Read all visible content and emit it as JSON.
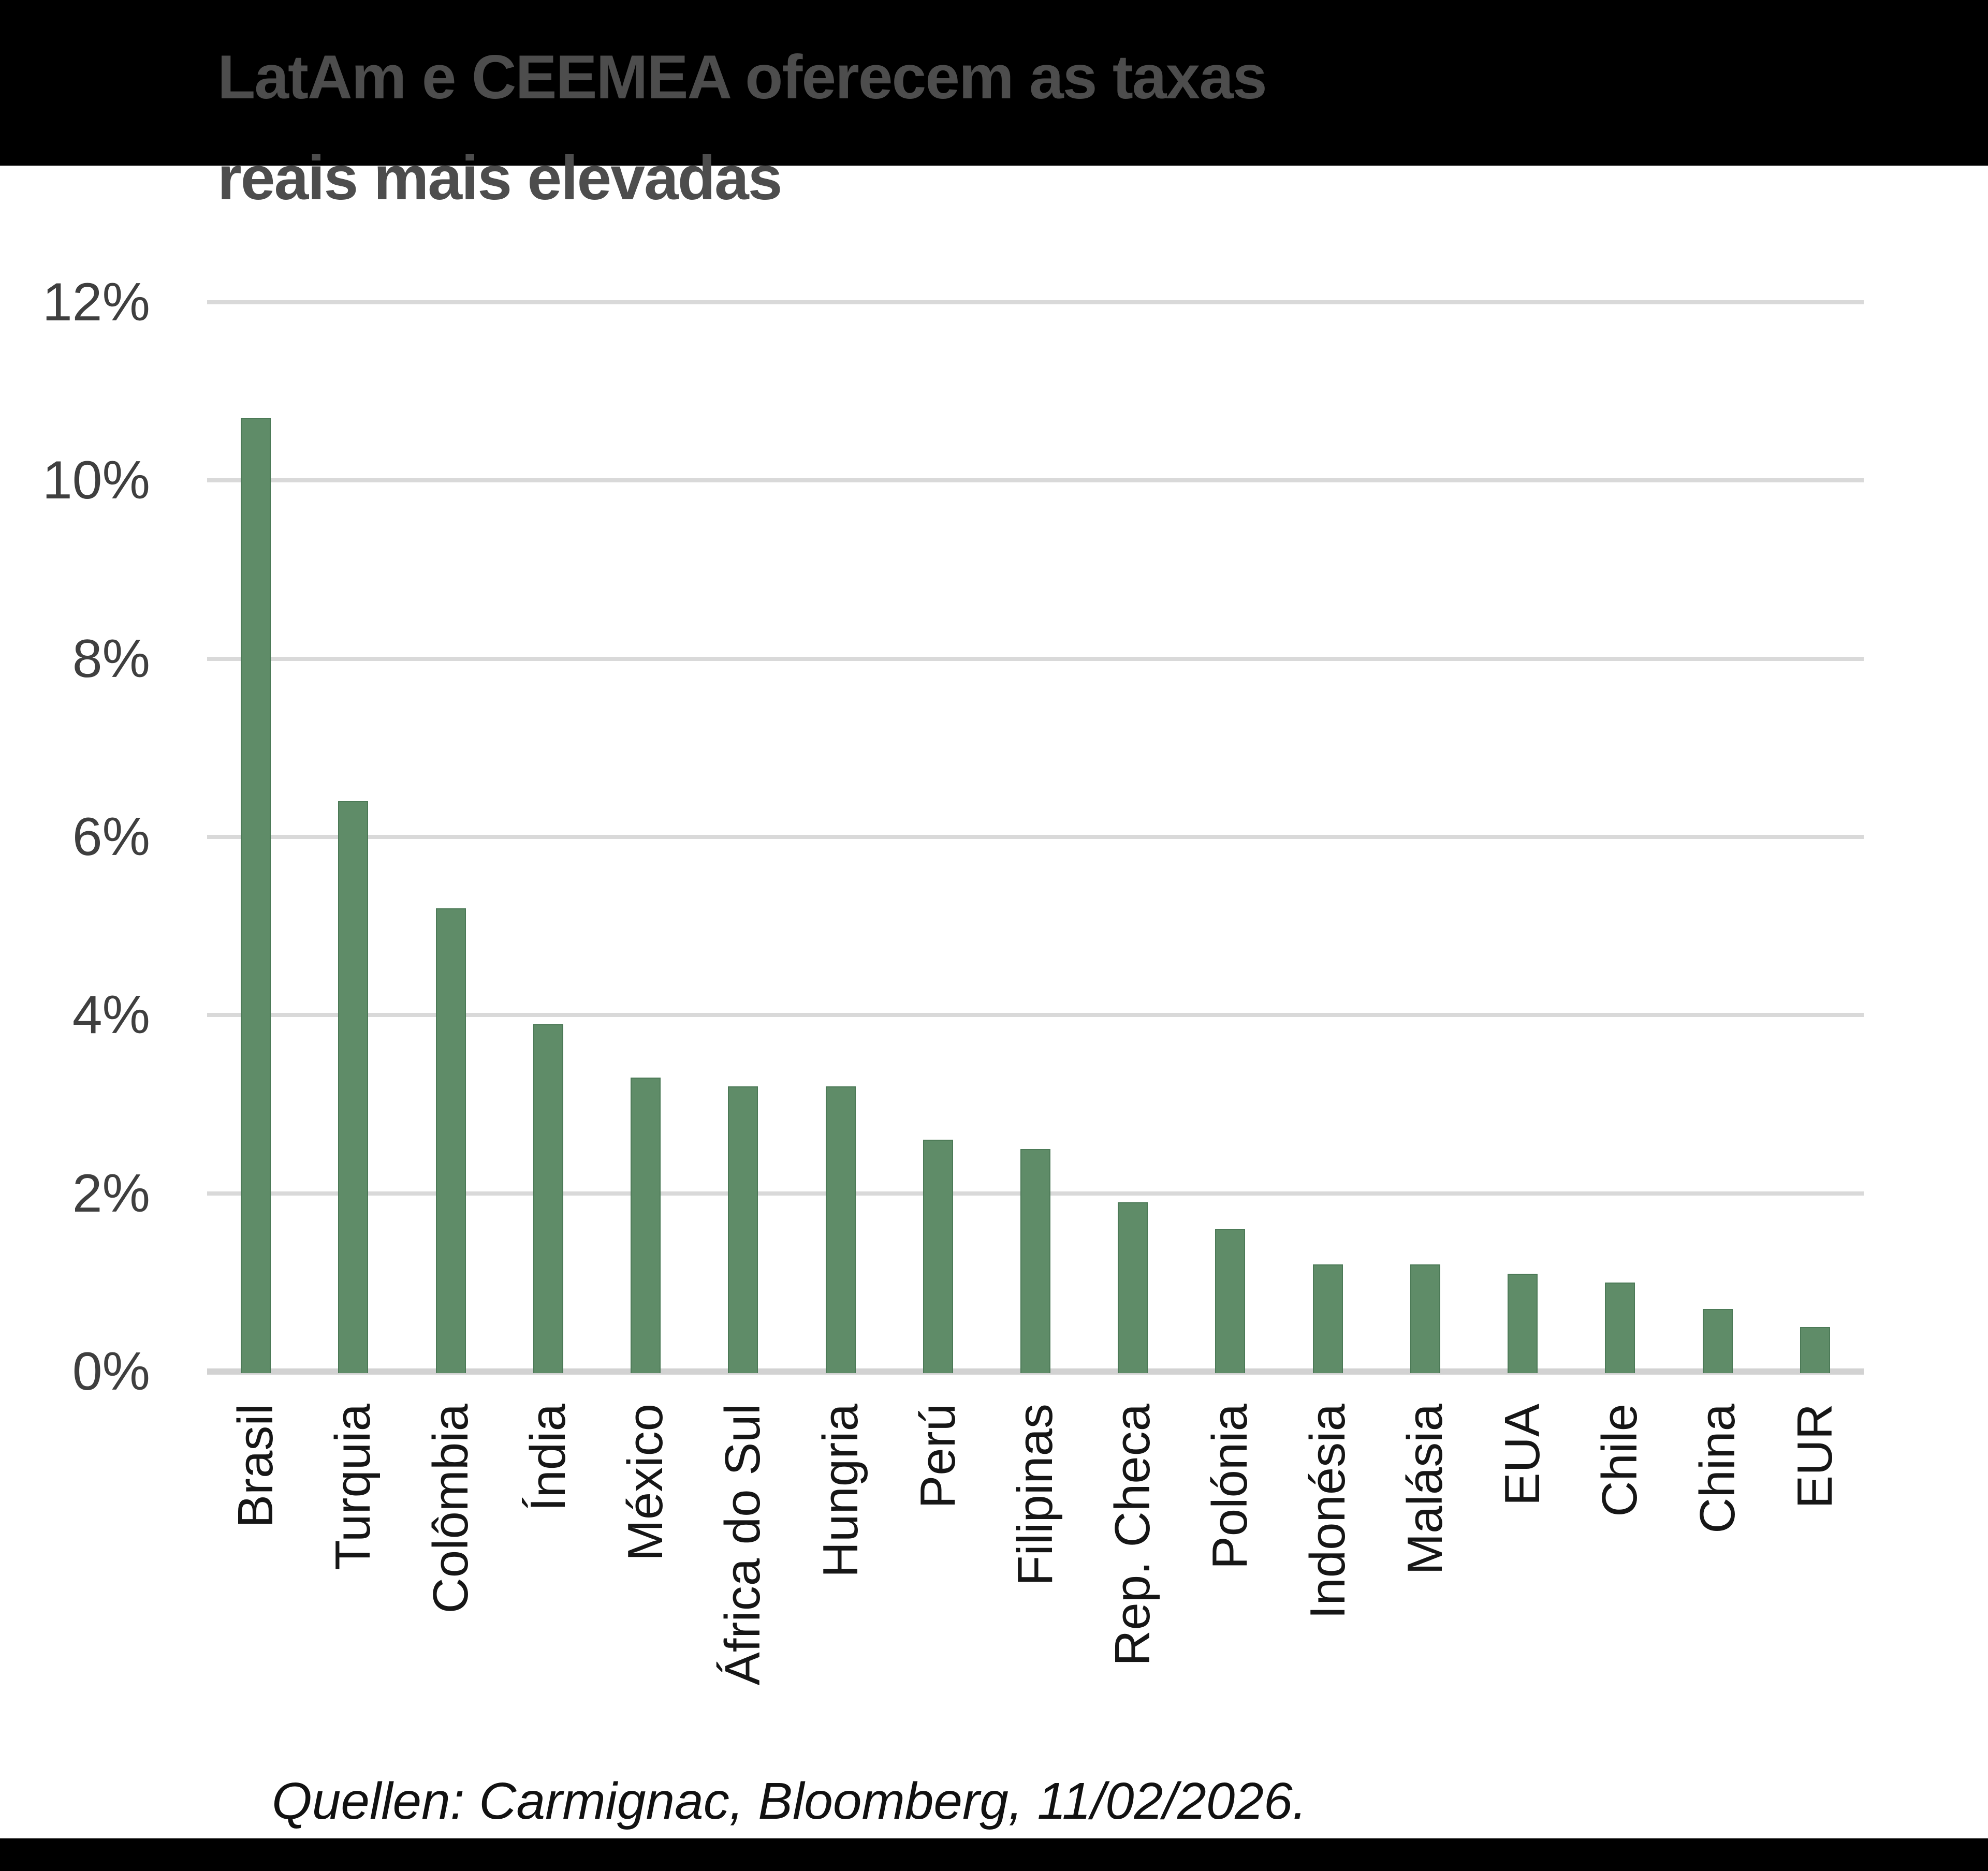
{
  "title": {
    "full": "LatAm e CEEMEA oferecem as taxas reais mais elevadas",
    "line1": "LatAm e CEEMEA oferecem as taxas",
    "line2": "reais mais elevadas"
  },
  "source": "Quellen: Carmignac, Bloomberg, 11/02/2026.",
  "colors": {
    "bar_fill": "#5f8c68",
    "bar_edge": "#4c7a57",
    "gridline": "#d9d9d9",
    "axis_baseline": "#d2d2d2",
    "band": "#000000",
    "title_text": "#4d4d4d",
    "tick_text": "#3f3f3f",
    "category_text": "#161616"
  },
  "chart_data": {
    "type": "bar",
    "title": "LatAm e CEEMEA oferecem as taxas reais mais elevadas",
    "categories": [
      "Brasil",
      "Turquia",
      "Colômbia",
      "Índia",
      "México",
      "África do Sul",
      "Hungria",
      "Perú",
      "Filipinas",
      "Rep. Checa",
      "Polónia",
      "Indonésia",
      "Malásia",
      "EUA",
      "Chile",
      "China",
      "EUR"
    ],
    "values": [
      10.7,
      6.4,
      5.2,
      3.9,
      3.3,
      3.2,
      3.2,
      2.6,
      2.5,
      1.9,
      1.6,
      1.2,
      1.2,
      1.1,
      1.0,
      0.7,
      0.5
    ],
    "value_unit": "%",
    "xlabel": "",
    "ylabel": "",
    "ylim": [
      0,
      12
    ],
    "ytick_labels": [
      "0%",
      "2%",
      "4%",
      "6%",
      "8%",
      "10%",
      "12%"
    ],
    "ytick_values": [
      0,
      2,
      4,
      6,
      8,
      10,
      12
    ],
    "grid": "horizontal",
    "legend": "none",
    "bar_color": "#5f8c68",
    "category_label_rotation": 90
  }
}
